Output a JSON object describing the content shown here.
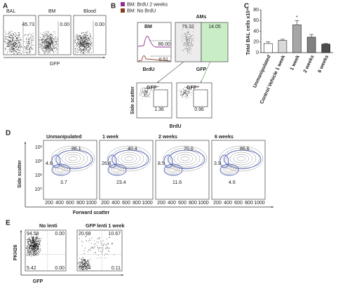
{
  "panel_a": {
    "label": "A",
    "plots": [
      {
        "title": "BAL",
        "value": "45.73"
      },
      {
        "title": "BM",
        "value": "0.00"
      },
      {
        "title": "Blood",
        "value": "0.00"
      }
    ],
    "x_label": "GFP"
  },
  "panel_b": {
    "label": "B",
    "legend": [
      {
        "name": "BM: BrdU 2 weeks",
        "color": "#8e2f8e"
      },
      {
        "name": "BM: No BrdU",
        "color": "#8a3b1c"
      }
    ],
    "histogram": {
      "title": "BM",
      "values": [
        "86.00",
        "0.51"
      ],
      "x_label": "BrdU"
    },
    "ams": {
      "title": "AMs",
      "values": [
        "79.32",
        "14.05"
      ],
      "x_label": "GFP"
    },
    "gated": [
      {
        "title": "GFP⁻",
        "value": "1.36"
      },
      {
        "title": "GFP⁺",
        "value": "0.96"
      }
    ],
    "y_label": "Side scatter",
    "x_label": "BrdU"
  },
  "panel_c": {
    "label": "C",
    "type": "bar",
    "y_label": "Total BAL cells x10⁴",
    "categories": [
      "Unmanipulated",
      "Control Vehicle 1 week",
      "1 week",
      "2 weeks",
      "6 weeks"
    ],
    "values": [
      17,
      23,
      52,
      29,
      16
    ],
    "errors": [
      3,
      2,
      8,
      5,
      1
    ],
    "colors": [
      "#ffffff",
      "#d9d9d9",
      "#a6a6a6",
      "#808080",
      "#4d4d4d"
    ],
    "ylim": [
      0,
      80
    ],
    "yticks": [
      0,
      20,
      40,
      60,
      80
    ],
    "annotation": "*"
  },
  "panel_d": {
    "label": "D",
    "plots": [
      {
        "title": "Unmanipulated",
        "values": [
          "4.6",
          "86.1",
          "3.7"
        ]
      },
      {
        "title": "1 week",
        "values": [
          "26.6",
          "40.4",
          "23.4"
        ]
      },
      {
        "title": "2 weeks",
        "values": [
          "8.5",
          "70.0",
          "11.6"
        ]
      },
      {
        "title": "6 weeks",
        "values": [
          "3.9",
          "86.6",
          "4.6"
        ]
      }
    ],
    "xticks": [
      "200",
      "400",
      "600",
      "800",
      "1000"
    ],
    "yticks": [
      "10³",
      "10²",
      "10¹",
      "10⁰"
    ],
    "y_label": "Side scatter",
    "x_label": "Forward scatter"
  },
  "panel_e": {
    "label": "E",
    "plots": [
      {
        "title": "No lenti",
        "values": [
          "94.58",
          "0.00",
          "5.42",
          "0.00"
        ]
      },
      {
        "title": "GFP lenti 1 week",
        "values": [
          "20.68",
          "10.67",
          "68.54",
          "0.11"
        ]
      }
    ],
    "y_label": "PKH26",
    "x_label": "GFP"
  }
}
